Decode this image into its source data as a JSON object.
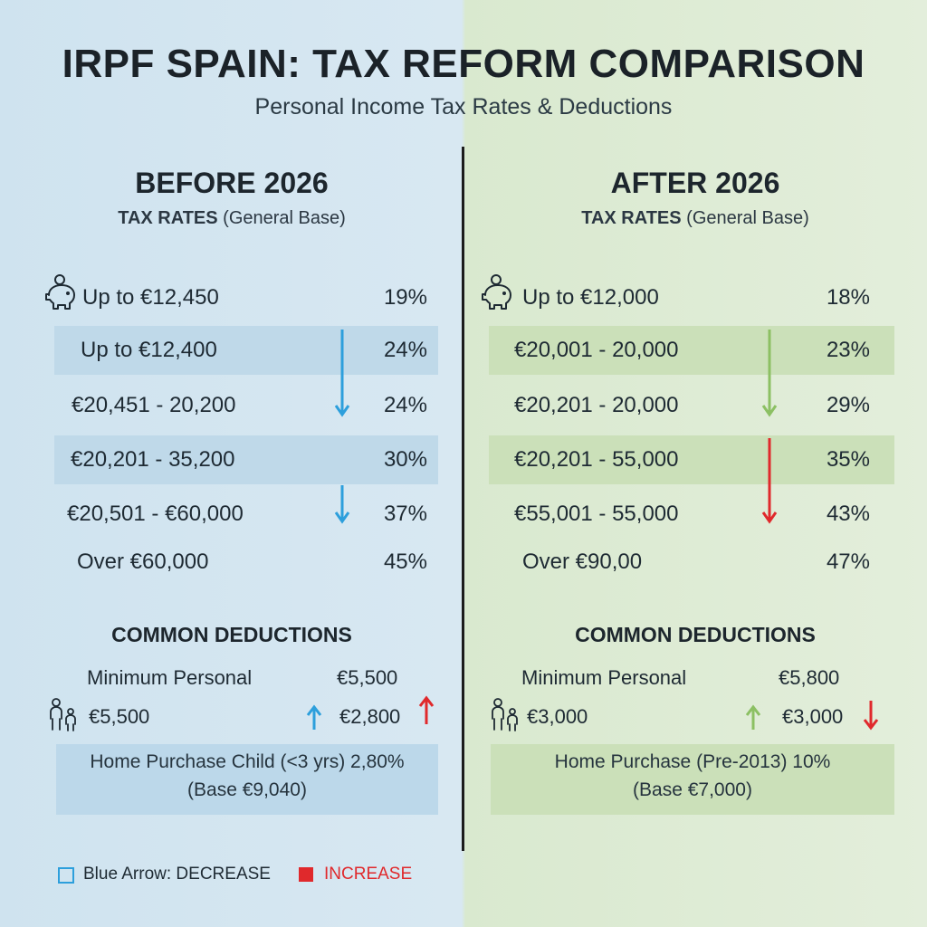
{
  "header": {
    "title": "IRPF SPAIN: TAX REFORM COMPARISON",
    "subtitle": "Personal Income Tax Rates & Deductions"
  },
  "before": {
    "heading": "BEFORE 2026",
    "rates_label_bold": "TAX RATES",
    "rates_label_rest": "(General Base)",
    "brackets": [
      {
        "range": "Up to €12,450",
        "rate": "19%"
      },
      {
        "range": "Up to €12,400",
        "rate": "24%"
      },
      {
        "range": "€20,451 - 20,200",
        "rate": "24%"
      },
      {
        "range": "€20,201 - 35,200",
        "rate": "30%"
      },
      {
        "range": "€20,501 - €60,000",
        "rate": "37%"
      },
      {
        "range": "Over €60,000",
        "rate": "45%"
      }
    ],
    "deductions_heading": "COMMON DEDUCTIONS",
    "min_personal_label": "Minimum Personal",
    "min_personal_value": "€5,500",
    "child_value": "€5,500",
    "child_value_2": "€2,800",
    "box_line1": "Home Purchase Child (<3 yrs) 2,80%",
    "box_line2": "(Base €9,040)"
  },
  "after": {
    "heading": "AFTER 2026",
    "rates_label_bold": "TAX RATES",
    "rates_label_rest": "(General Base)",
    "brackets": [
      {
        "range": "Up to €12,000",
        "rate": "18%"
      },
      {
        "range": "€20,001 - 20,000",
        "rate": "23%"
      },
      {
        "range": "€20,201 - 20,000",
        "rate": "29%"
      },
      {
        "range": "€20,201 - 55,000",
        "rate": "35%"
      },
      {
        "range": "€55,001 - 55,000",
        "rate": "43%"
      },
      {
        "range": "Over €90,00",
        "rate": "47%"
      }
    ],
    "deductions_heading": "COMMON DEDUCTIONS",
    "min_personal_label": "Minimum Personal",
    "min_personal_value": "€5,800",
    "child_value": "€3,000",
    "child_value_2": "€3,000",
    "box_line1": "Home Purchase (Pre-2013) 10%",
    "box_line2": "(Base €7,000)"
  },
  "legend": {
    "decrease_label": "Blue Arrow: DECREASE",
    "increase_label": "INCREASE"
  },
  "colors": {
    "blue_arrow": "#2d9fdc",
    "green_arrow": "#8cc063",
    "red_arrow": "#e0292c",
    "left_bg": "#d5e6f1",
    "right_bg": "#dfecd5"
  },
  "icons": [
    "piggy-bank-icon",
    "family-icon",
    "arrow-down-icon",
    "arrow-up-icon"
  ]
}
